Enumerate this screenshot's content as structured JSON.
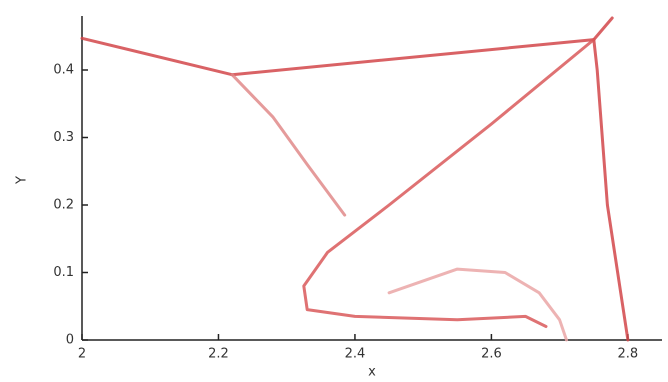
{
  "chart_data": {
    "type": "line",
    "x_label": "x",
    "y_label": "Y",
    "xlim": [
      2,
      2.85
    ],
    "ylim": [
      0,
      0.48
    ],
    "xticks": [
      2,
      2.2,
      2.4,
      2.6,
      2.8
    ],
    "yticks": [
      0,
      0.1,
      0.2,
      0.3,
      0.4
    ],
    "series": [
      {
        "color": "#d2474a",
        "x": [
          2,
          2.22
        ],
        "values": [
          0.447,
          0.393
        ]
      },
      {
        "color": "#d2474a",
        "x": [
          2.22,
          2.75
        ],
        "values": [
          0.393,
          0.445
        ]
      },
      {
        "color": "#d2474a",
        "x": [
          2.75,
          2.755,
          2.77,
          2.8
        ],
        "values": [
          0.445,
          0.4,
          0.2,
          0
        ]
      },
      {
        "color": "#d2474a",
        "x": [
          2.75,
          2.777
        ],
        "values": [
          0.445,
          0.477
        ]
      },
      {
        "color": "#e08a8a",
        "x": [
          2.22,
          2.28,
          2.33,
          2.385
        ],
        "values": [
          0.393,
          0.33,
          0.26,
          0.185
        ]
      },
      {
        "color": "#d9595b",
        "x": [
          2.75,
          2.6,
          2.45,
          2.36,
          2.325,
          2.33,
          2.4,
          2.55,
          2.65,
          2.68
        ],
        "values": [
          0.445,
          0.32,
          0.2,
          0.13,
          0.08,
          0.045,
          0.035,
          0.03,
          0.035,
          0.02
        ]
      },
      {
        "color": "#eaa6a6",
        "x": [
          2.45,
          2.55,
          2.62,
          2.67,
          2.7,
          2.71
        ],
        "values": [
          0.07,
          0.105,
          0.1,
          0.07,
          0.03,
          0
        ]
      }
    ]
  }
}
